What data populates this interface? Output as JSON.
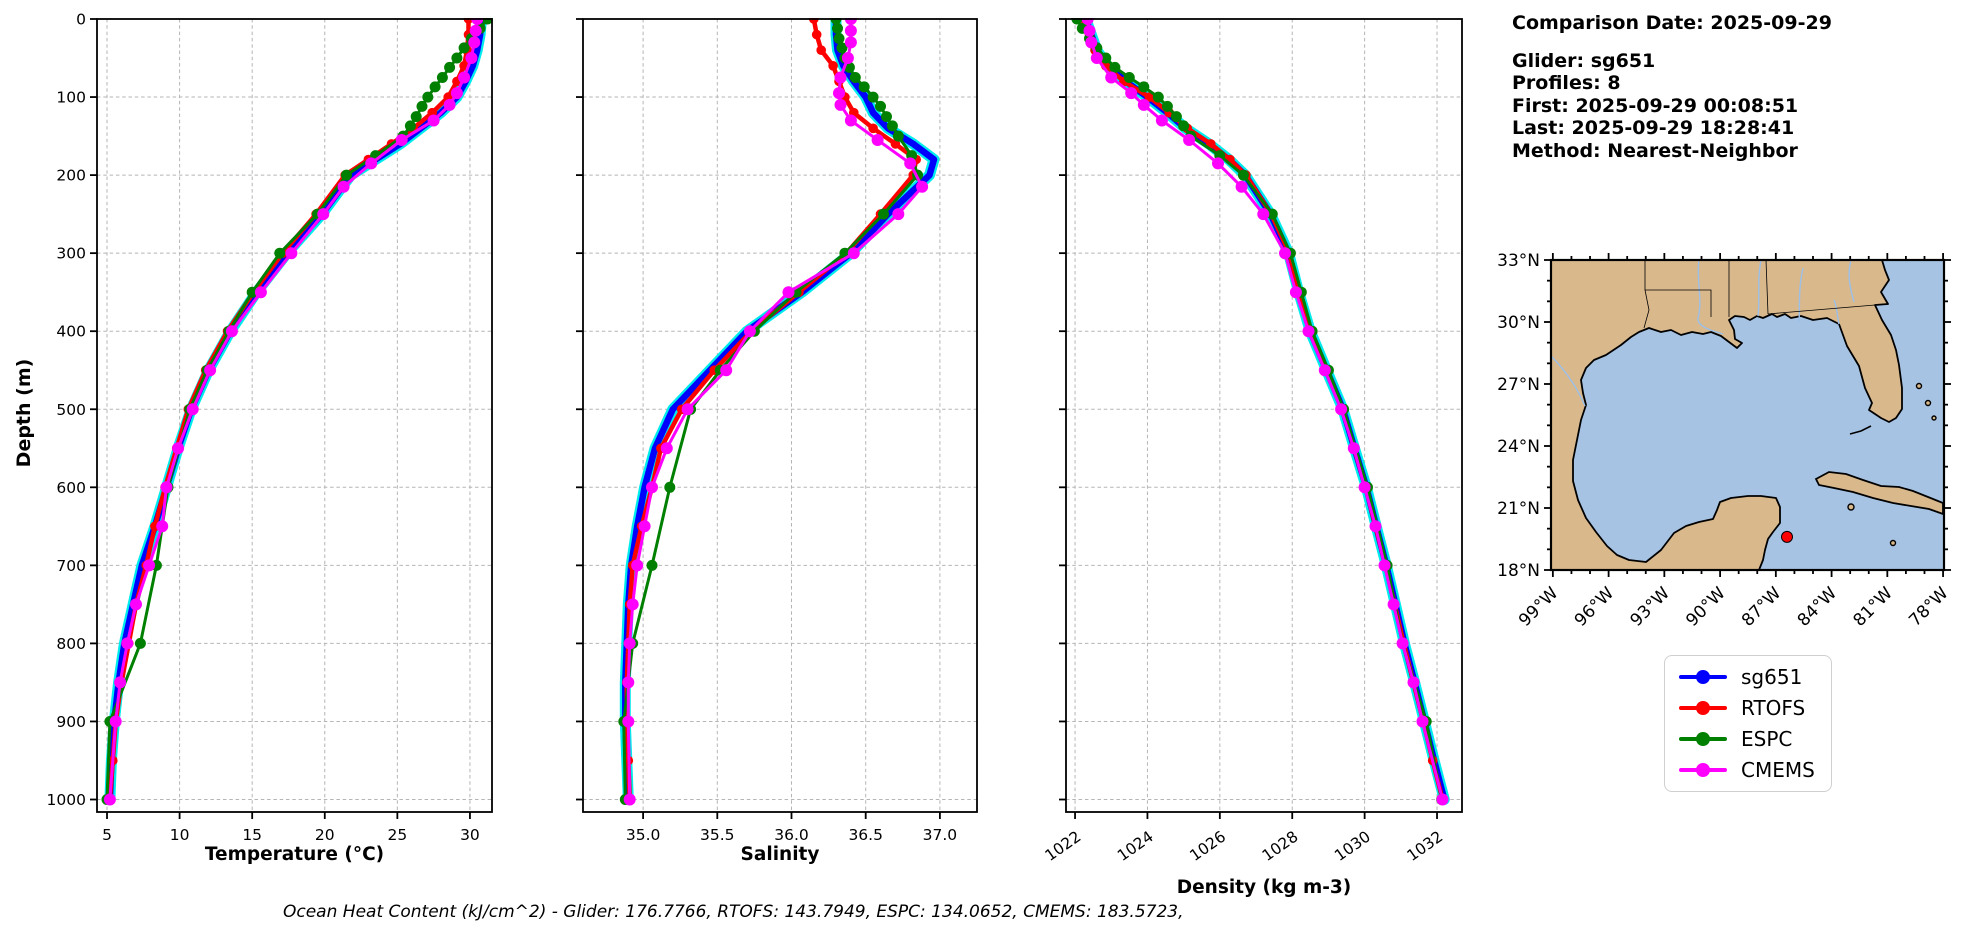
{
  "info_panel": {
    "comparison_date": "Comparison Date: 2025-09-29",
    "lines": [
      "Glider: sg651",
      "Profiles: 8",
      "First: 2025-09-29 00:08:51",
      "Last: 2025-09-29 18:28:41",
      "Method: Nearest-Neighbor"
    ]
  },
  "footer": {
    "ohc_text": "Ocean Heat Content (kJ/cm^2) - Glider: 176.7766,  RTOFS: 143.7949,  ESPC: 134.0652,  CMEMS: 183.5723,"
  },
  "legend": {
    "items": [
      {
        "label": "sg651",
        "color": "#0000ff"
      },
      {
        "label": "RTOFS",
        "color": "#ff0000"
      },
      {
        "label": "ESPC",
        "color": "#008000"
      },
      {
        "label": "CMEMS",
        "color": "#ff00ff"
      }
    ]
  },
  "map": {
    "extent": {
      "west": -99.1,
      "east": -77.95,
      "south": 18,
      "north": 33
    },
    "lat_tick_values": [
      33,
      30,
      27,
      24,
      21,
      18
    ],
    "lat_tick_labels": [
      "33°N",
      "30°N",
      "27°N",
      "24°N",
      "21°N",
      "18°N"
    ],
    "lon_tick_values": [
      -99,
      -96,
      -93,
      -90,
      -87,
      -84,
      -81,
      -78
    ],
    "lon_tick_labels": [
      "99°W",
      "96°W",
      "93°W",
      "90°W",
      "87°W",
      "84°W",
      "81°W",
      "78°W"
    ],
    "marker": {
      "lon": -86.4,
      "lat": 19.6,
      "color": "#ff0000"
    },
    "land_color": "#d9b88c",
    "ocean_color": "#a6c3e3",
    "river_color": "#9cc0e8"
  },
  "chart_data": {
    "type": "line",
    "note": "Glider-vs-model vertical profile comparison, depth increases downward",
    "ylabel": "Depth (m)",
    "ylim": [
      0,
      1016
    ],
    "yticks": [
      0,
      100,
      200,
      300,
      400,
      500,
      600,
      700,
      800,
      900,
      1000
    ],
    "depth_grids": {
      "A": [
        0,
        20,
        40,
        60,
        80,
        100,
        120,
        140,
        160,
        180,
        200,
        250,
        300,
        350,
        400,
        450,
        500,
        550,
        600,
        650,
        700,
        750,
        800,
        850,
        900,
        950,
        1000
      ],
      "B": [
        0,
        12,
        25,
        37,
        50,
        62,
        75,
        87,
        100,
        112,
        125,
        137,
        150,
        175,
        200,
        250,
        300,
        350,
        400,
        450,
        500,
        600,
        700,
        800,
        900,
        1000
      ],
      "C": [
        0,
        15,
        30,
        50,
        75,
        95,
        110,
        130,
        155,
        185,
        215,
        250,
        300,
        350,
        400,
        450,
        500,
        550,
        600,
        650,
        700,
        750,
        800,
        850,
        900,
        1000
      ]
    },
    "panels": [
      {
        "id": "temperature",
        "xlabel": "Temperature (°C)",
        "ylabel": "Depth (m)",
        "xlim": [
          4.31,
          31.52
        ],
        "xticks": [
          5,
          10,
          15,
          20,
          25,
          30
        ],
        "xtick_labels": [
          "5",
          "10",
          "15",
          "20",
          "25",
          "30"
        ],
        "xtick_rotate": 0,
        "ytick_labels": true,
        "series": [
          {
            "name": "glider-raw-spread",
            "color": "#00ecec",
            "lw": 11,
            "marker": 0,
            "legend": false,
            "copy_of": "sg651"
          },
          {
            "name": "sg651",
            "color": "#0000ff",
            "lw": 6.5,
            "marker": 0,
            "depths_key": "A",
            "values": [
              30.8,
              30.7,
              30.5,
              30.2,
              29.7,
              29.1,
              28.0,
              26.6,
              25.2,
              23.5,
              21.8,
              19.8,
              17.4,
              15.3,
              13.5,
              12.0,
              10.8,
              9.9,
              9.1,
              8.3,
              7.4,
              6.8,
              6.2,
              5.8,
              5.5,
              5.3,
              5.2
            ]
          },
          {
            "name": "RTOFS",
            "color": "#ff0000",
            "lw": 4.5,
            "marker": 4.8,
            "depths_key": "A",
            "values": [
              29.9,
              29.9,
              29.8,
              29.6,
              29.1,
              28.5,
              27.4,
              26.1,
              24.6,
              23.0,
              21.4,
              19.4,
              17.1,
              15.1,
              13.3,
              11.8,
              10.6,
              9.8,
              9.0,
              8.3,
              7.7,
              7.0,
              6.5,
              6.0,
              5.6,
              5.4,
              5.2
            ]
          },
          {
            "name": "ESPC",
            "color": "#008000",
            "lw": 3,
            "marker": 5.5,
            "depths_key": "B",
            "values": [
              31.2,
              30.7,
              30.1,
              29.6,
              29.1,
              28.6,
              28.1,
              27.6,
              27.1,
              26.7,
              26.3,
              25.9,
              25.4,
              23.5,
              21.5,
              19.5,
              16.9,
              15.0,
              13.4,
              11.9,
              10.7,
              9.2,
              8.4,
              7.3,
              5.2,
              5.0
            ]
          },
          {
            "name": "CMEMS",
            "color": "#ff00ff",
            "lw": 3,
            "marker": 6,
            "depths_key": "C",
            "values": [
              30.5,
              30.4,
              30.3,
              30.1,
              29.6,
              29.1,
              28.6,
              27.5,
              25.3,
              23.2,
              21.3,
              19.9,
              17.7,
              15.6,
              13.6,
              12.1,
              10.9,
              9.9,
              9.1,
              8.8,
              7.9,
              7.0,
              6.4,
              5.9,
              5.6,
              5.2
            ]
          }
        ]
      },
      {
        "id": "salinity",
        "xlabel": "Salinity",
        "xlim": [
          34.595,
          37.25
        ],
        "xticks": [
          35.0,
          35.5,
          36.0,
          36.5,
          37.0
        ],
        "xtick_labels": [
          "35.0",
          "35.5",
          "36.0",
          "36.5",
          "37.0"
        ],
        "xtick_rotate": 0,
        "ytick_labels": false,
        "series": [
          {
            "name": "glider-raw-spread",
            "color": "#00ecec",
            "lw": 11,
            "marker": 0,
            "legend": false,
            "copy_of": "sg651"
          },
          {
            "name": "sg651",
            "color": "#0000ff",
            "lw": 6.5,
            "marker": 0,
            "depths_key": "A",
            "values": [
              36.3,
              36.3,
              36.31,
              36.35,
              36.42,
              36.5,
              36.55,
              36.65,
              36.82,
              36.96,
              36.93,
              36.65,
              36.4,
              36.07,
              35.7,
              35.45,
              35.2,
              35.08,
              35.01,
              34.96,
              34.92,
              34.9,
              34.89,
              34.88,
              34.88,
              34.89,
              34.9
            ]
          },
          {
            "name": "RTOFS",
            "color": "#ff0000",
            "lw": 4.5,
            "marker": 4.8,
            "depths_key": "A",
            "values": [
              36.15,
              36.17,
              36.2,
              36.28,
              36.32,
              36.36,
              36.42,
              36.55,
              36.7,
              36.84,
              36.82,
              36.6,
              36.37,
              36.05,
              35.73,
              35.48,
              35.26,
              35.12,
              35.06,
              34.99,
              34.93,
              34.91,
              34.9,
              34.89,
              34.89,
              34.9,
              34.91
            ]
          },
          {
            "name": "ESPC",
            "color": "#008000",
            "lw": 3,
            "marker": 5.5,
            "depths_key": "B",
            "values": [
              36.3,
              36.31,
              36.32,
              36.34,
              36.36,
              36.39,
              36.43,
              36.49,
              36.55,
              36.6,
              36.64,
              36.68,
              36.72,
              36.81,
              36.85,
              36.62,
              36.36,
              36.03,
              35.75,
              35.52,
              35.32,
              35.18,
              35.06,
              34.93,
              34.87,
              34.88
            ]
          },
          {
            "name": "CMEMS",
            "color": "#ff00ff",
            "lw": 3,
            "marker": 6,
            "depths_key": "C",
            "values": [
              36.4,
              36.4,
              36.4,
              36.38,
              36.33,
              36.32,
              36.33,
              36.4,
              36.58,
              36.8,
              36.88,
              36.72,
              36.42,
              35.98,
              35.72,
              35.56,
              35.3,
              35.16,
              35.06,
              35.01,
              34.96,
              34.93,
              34.91,
              34.9,
              34.9,
              34.91
            ]
          }
        ]
      },
      {
        "id": "density",
        "xlabel": "Density (kg m-3)",
        "xlim": [
          1021.75,
          1032.69
        ],
        "xticks": [
          1022,
          1024,
          1026,
          1028,
          1030,
          1032
        ],
        "xtick_labels": [
          "1022",
          "1024",
          "1026",
          "1028",
          "1030",
          "1032"
        ],
        "xtick_rotate": -35,
        "ytick_labels": false,
        "series": [
          {
            "name": "glider-raw-spread",
            "color": "#00ecec",
            "lw": 11,
            "marker": 0,
            "legend": false,
            "copy_of": "sg651"
          },
          {
            "name": "sg651",
            "color": "#0000ff",
            "lw": 6.5,
            "marker": 0,
            "depths_key": "A",
            "values": [
              1022.3,
              1022.45,
              1022.6,
              1022.9,
              1023.4,
              1024.0,
              1024.55,
              1025.05,
              1025.7,
              1026.25,
              1026.7,
              1027.4,
              1027.9,
              1028.18,
              1028.5,
              1028.95,
              1029.4,
              1029.72,
              1030.05,
              1030.32,
              1030.6,
              1030.85,
              1031.1,
              1031.38,
              1031.65,
              1031.92,
              1032.2
            ]
          },
          {
            "name": "RTOFS",
            "color": "#ff0000",
            "lw": 4.5,
            "marker": 4.8,
            "depths_key": "A",
            "values": [
              1022.25,
              1022.4,
              1022.55,
              1022.85,
              1023.35,
              1024.05,
              1024.6,
              1025.1,
              1025.75,
              1026.28,
              1026.72,
              1027.42,
              1027.92,
              1028.2,
              1028.52,
              1028.96,
              1029.4,
              1029.71,
              1030.03,
              1030.3,
              1030.58,
              1030.83,
              1031.08,
              1031.35,
              1031.62,
              1031.88,
              1032.15
            ]
          },
          {
            "name": "ESPC",
            "color": "#008000",
            "lw": 3,
            "marker": 5.5,
            "depths_key": "B",
            "values": [
              1022.05,
              1022.2,
              1022.4,
              1022.6,
              1022.85,
              1023.1,
              1023.5,
              1023.9,
              1024.3,
              1024.55,
              1024.8,
              1025.0,
              1025.2,
              1026.0,
              1026.65,
              1027.45,
              1027.95,
              1028.25,
              1028.55,
              1029.0,
              1029.42,
              1030.08,
              1030.62,
              1031.05,
              1031.7,
              1032.13
            ]
          },
          {
            "name": "CMEMS",
            "color": "#ff00ff",
            "lw": 3,
            "marker": 6,
            "depths_key": "C",
            "values": [
              1022.35,
              1022.4,
              1022.45,
              1022.6,
              1023.0,
              1023.55,
              1023.9,
              1024.4,
              1025.15,
              1025.95,
              1026.6,
              1027.2,
              1027.8,
              1028.1,
              1028.45,
              1028.9,
              1029.35,
              1029.7,
              1030.0,
              1030.3,
              1030.55,
              1030.8,
              1031.05,
              1031.35,
              1031.6,
              1032.15
            ]
          }
        ]
      }
    ]
  }
}
